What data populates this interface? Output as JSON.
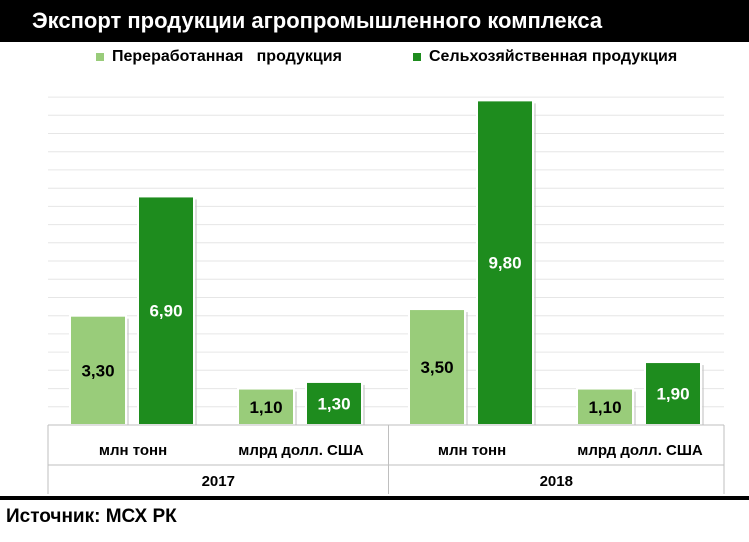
{
  "title": "Экспорт продукции агропромышленного комплекса",
  "source": "Источник: МСХ РК",
  "colors": {
    "processed": "#99cc7a",
    "agricultural": "#1e8c1e",
    "grid": "#e6e6e6",
    "header": "#000000"
  },
  "chart_data": {
    "type": "bar",
    "ylim": [
      0,
      11
    ],
    "grid": true,
    "legend_position": "top",
    "groups": [
      {
        "year": "2017",
        "categories": [
          "млн тонн",
          "млрд долл. США"
        ]
      },
      {
        "year": "2018",
        "categories": [
          "млн тонн",
          "млрд долл. США"
        ]
      }
    ],
    "categories": [
      "млн тонн",
      "млрд долл. США",
      "млн тонн",
      "млрд долл. США"
    ],
    "series": [
      {
        "name": "Переработанная   продукция",
        "values": [
          3.3,
          1.1,
          3.5,
          1.1
        ],
        "labels": [
          "3,30",
          "1,10",
          "3,50",
          "1,10"
        ]
      },
      {
        "name": "Сельхозяйственная продукция",
        "values": [
          6.9,
          1.3,
          9.8,
          1.9
        ],
        "labels": [
          "6,90",
          "1,30",
          "9,80",
          "1,90"
        ]
      }
    ]
  }
}
